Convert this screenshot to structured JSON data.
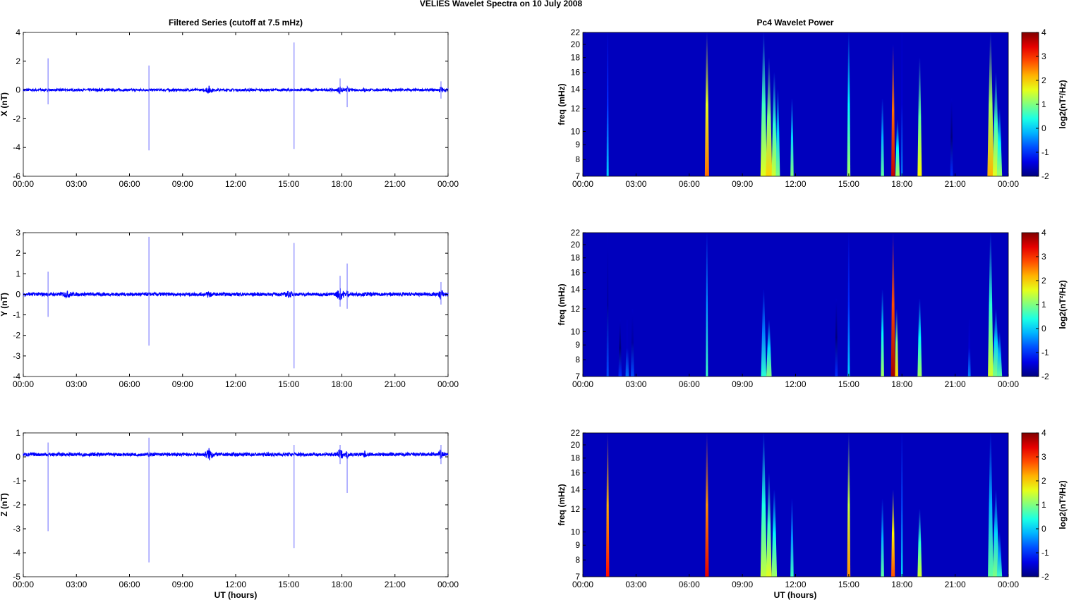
{
  "chart_data": {
    "title": "VELIES Wavelet Spectra on 10 July      2008",
    "xlabel": "UT (hours)",
    "x_tick_labels": [
      "00:00",
      "03:00",
      "06:00",
      "09:00",
      "12:00",
      "15:00",
      "18:00",
      "21:00",
      "00:00"
    ],
    "xlim": [
      0,
      24
    ],
    "left_title": "Filtered Series (cutoff at 7.5 mHz)",
    "right_title": "Pc4 Wavelet Power",
    "timeseries": [
      {
        "type": "line",
        "ylabel": "X (nT)",
        "ylim": [
          -6,
          4
        ],
        "yticks": [
          -6,
          -4,
          -2,
          0,
          2,
          4
        ],
        "noise": 0.08,
        "offset": 0,
        "color": "#0000ff",
        "bursts": [
          [
            10.5,
            0.25,
            3
          ],
          [
            17.9,
            0.2,
            3
          ],
          [
            18.3,
            0.1,
            2
          ],
          [
            23.6,
            0.15,
            3
          ],
          [
            19.3,
            0.1,
            1.5
          ]
        ],
        "spikes": [
          [
            1.4,
            2.2,
            -1.0
          ],
          [
            7.1,
            1.7,
            -4.2
          ],
          [
            15.3,
            3.3,
            -4.1
          ],
          [
            17.9,
            0.8,
            -0.3
          ],
          [
            18.3,
            0.3,
            -1.2
          ],
          [
            23.6,
            0.6,
            -0.6
          ]
        ]
      },
      {
        "type": "line",
        "ylabel": "Y (nT)",
        "ylim": [
          -4,
          3
        ],
        "yticks": [
          -4,
          -3,
          -2,
          -1,
          0,
          1,
          2,
          3
        ],
        "noise": 0.08,
        "offset": 0,
        "color": "#0000ff",
        "bursts": [
          [
            10.5,
            0.2,
            2
          ],
          [
            17.9,
            0.3,
            3
          ],
          [
            18.3,
            0.1,
            2
          ],
          [
            23.6,
            0.15,
            3
          ],
          [
            2.5,
            0.4,
            1.3
          ],
          [
            15,
            0.3,
            1.3
          ]
        ],
        "spikes": [
          [
            1.4,
            1.1,
            -1.1
          ],
          [
            7.1,
            2.8,
            -2.5
          ],
          [
            15.3,
            2.5,
            -3.6
          ],
          [
            17.9,
            0.9,
            -0.6
          ],
          [
            18.3,
            1.5,
            -0.7
          ],
          [
            23.6,
            0.6,
            -0.5
          ]
        ]
      },
      {
        "type": "line",
        "ylabel": "Z (nT)",
        "ylim": [
          -5,
          1
        ],
        "yticks": [
          -5,
          -4,
          -3,
          -2,
          -1,
          0,
          1
        ],
        "noise": 0.07,
        "offset": 0.1,
        "color": "#0000ff",
        "bursts": [
          [
            10.5,
            0.3,
            3
          ],
          [
            17.9,
            0.2,
            3
          ],
          [
            18.3,
            0.1,
            2
          ],
          [
            23.6,
            0.15,
            3
          ],
          [
            19.3,
            0.1,
            1.5
          ]
        ],
        "spikes": [
          [
            1.4,
            0.6,
            -3.1
          ],
          [
            7.1,
            0.8,
            -4.4
          ],
          [
            15.3,
            0.5,
            -3.8
          ],
          [
            17.9,
            0.5,
            -0.3
          ],
          [
            18.3,
            0.2,
            -1.5
          ],
          [
            23.6,
            0.5,
            -0.3
          ]
        ]
      }
    ],
    "spectra": [
      {
        "type": "heatmap",
        "ylabel": "freq (mHz)",
        "ylim": [
          7,
          22
        ],
        "yticks": [
          7,
          8,
          9,
          10,
          12,
          14,
          16,
          18,
          20,
          22
        ],
        "clim": [
          -2,
          4
        ],
        "cbar_ticks": [
          -2,
          -1,
          0,
          1,
          2,
          3,
          4
        ],
        "cbar_label": "log2(nT²/Hz)",
        "events": [
          [
            1.4,
            22,
            0,
            0.04
          ],
          [
            7.0,
            22,
            2.6,
            0.08
          ],
          [
            10.2,
            22,
            1.6,
            0.12
          ],
          [
            10.5,
            18,
            2,
            0.12
          ],
          [
            10.8,
            16,
            1.5,
            0.1
          ],
          [
            11.0,
            14,
            1,
            0.08
          ],
          [
            11.8,
            13,
            1,
            0.06
          ],
          [
            15.0,
            22,
            1.2,
            0.06
          ],
          [
            16.9,
            13,
            0.8,
            0.06
          ],
          [
            17.5,
            20,
            3.6,
            0.07
          ],
          [
            17.75,
            11,
            1.2,
            0.08
          ],
          [
            18.0,
            22,
            -0.5,
            0.03
          ],
          [
            19.0,
            18,
            1.8,
            0.08
          ],
          [
            20.8,
            13,
            -1,
            0.05
          ],
          [
            23.0,
            22,
            2.2,
            0.12
          ],
          [
            23.3,
            16,
            1.6,
            0.12
          ],
          [
            23.5,
            12,
            1.2,
            0.1
          ]
        ]
      },
      {
        "type": "heatmap",
        "ylabel": "freq (mHz)",
        "ylim": [
          7,
          22
        ],
        "yticks": [
          7,
          8,
          9,
          10,
          12,
          14,
          16,
          18,
          20,
          22
        ],
        "clim": [
          -2,
          4
        ],
        "cbar_ticks": [
          -2,
          -1,
          0,
          1,
          2,
          3,
          4
        ],
        "cbar_label": "log2(nT²/Hz)",
        "events": [
          [
            1.4,
            22,
            -0.8,
            0.04
          ],
          [
            2.1,
            11,
            -1,
            0.06
          ],
          [
            2.5,
            11,
            -0.6,
            0.06
          ],
          [
            2.8,
            12,
            -0.8,
            0.06
          ],
          [
            7.0,
            22,
            0.6,
            0.04
          ],
          [
            10.2,
            14,
            0.5,
            0.1
          ],
          [
            10.5,
            11,
            1,
            0.1
          ],
          [
            14.3,
            13,
            -1,
            0.05
          ],
          [
            15.0,
            22,
            0,
            0.04
          ],
          [
            16.9,
            14,
            1.2,
            0.06
          ],
          [
            17.5,
            22,
            3.8,
            0.08
          ],
          [
            17.7,
            12,
            2,
            0.06
          ],
          [
            19.0,
            13,
            1.2,
            0.08
          ],
          [
            21.8,
            11,
            -0.5,
            0.05
          ],
          [
            23.0,
            22,
            1.5,
            0.1
          ],
          [
            23.3,
            12,
            1,
            0.12
          ],
          [
            23.5,
            10,
            0.8,
            0.1
          ]
        ]
      },
      {
        "type": "heatmap",
        "ylabel": "freq (mHz)",
        "ylim": [
          7,
          22
        ],
        "yticks": [
          7,
          8,
          9,
          10,
          12,
          14,
          16,
          18,
          20,
          22
        ],
        "clim": [
          -2,
          4
        ],
        "cbar_ticks": [
          -2,
          -1,
          0,
          1,
          2,
          3,
          4
        ],
        "cbar_label": "log2(nT²/Hz)",
        "events": [
          [
            1.4,
            22,
            3.2,
            0.06
          ],
          [
            7.0,
            22,
            3.4,
            0.07
          ],
          [
            10.2,
            22,
            1.4,
            0.12
          ],
          [
            10.5,
            16,
            1.6,
            0.1
          ],
          [
            10.8,
            14,
            1.2,
            0.1
          ],
          [
            11.8,
            13,
            0.6,
            0.06
          ],
          [
            15.0,
            22,
            2.4,
            0.06
          ],
          [
            16.9,
            13,
            0.8,
            0.06
          ],
          [
            17.5,
            14,
            2.8,
            0.07
          ],
          [
            18.0,
            22,
            0.2,
            0.03
          ],
          [
            19.0,
            12,
            1.5,
            0.08
          ],
          [
            23.0,
            22,
            0.8,
            0.1
          ],
          [
            23.3,
            14,
            1,
            0.12
          ],
          [
            23.5,
            10,
            0.6,
            0.1
          ]
        ]
      }
    ]
  }
}
